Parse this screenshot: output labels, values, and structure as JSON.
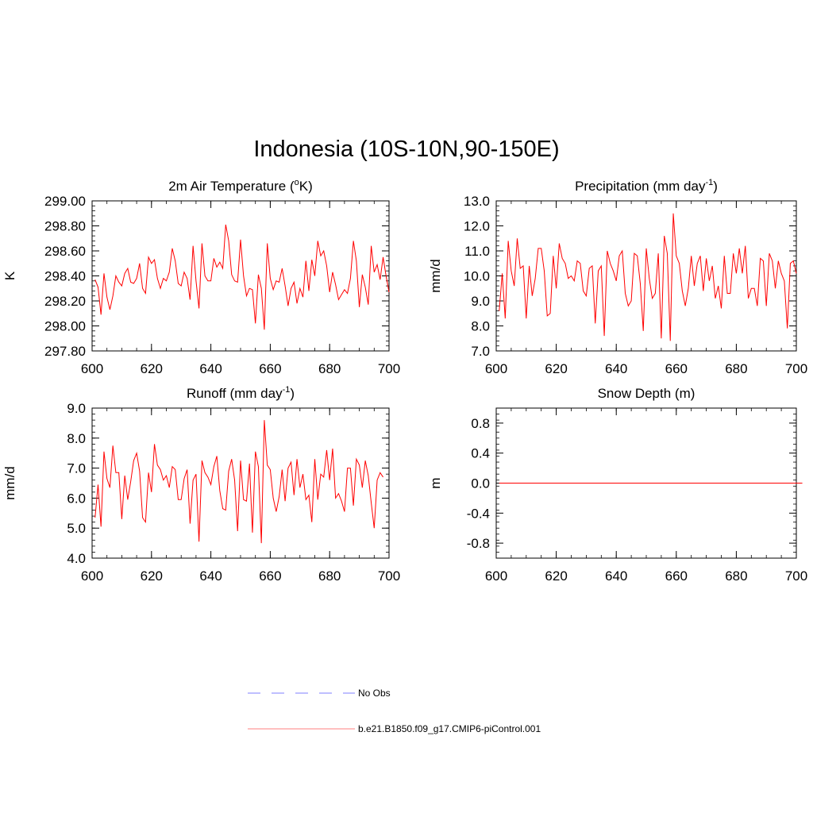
{
  "page": {
    "title": "Indonesia (10S-10N,90-150E)"
  },
  "colors": {
    "model": "#ff0000",
    "obs": "#9999ff",
    "axis": "#000000"
  },
  "legend": {
    "obs_label": "No Obs",
    "model_label": "b.e21.B1850.f09_g17.CMIP6-piControl.001"
  },
  "chart_data": [
    {
      "type": "line",
      "title": "2m Air Temperature (",
      "title_sup": "o",
      "title_end": "K)",
      "ylabel": "K",
      "xlim": [
        600,
        700
      ],
      "ylim": [
        297.8,
        299.0
      ],
      "x_ticks": [
        "600",
        "620",
        "640",
        "660",
        "680",
        "700"
      ],
      "y_ticks": [
        "297.80",
        "298.00",
        "298.20",
        "298.40",
        "298.60",
        "298.80",
        "299.00"
      ],
      "x_start": 601,
      "series": [
        {
          "values": [
            298.37,
            298.31,
            298.09,
            298.42,
            298.23,
            298.13,
            298.24,
            298.4,
            298.35,
            298.32,
            298.42,
            298.46,
            298.35,
            298.34,
            298.38,
            298.5,
            298.3,
            298.26,
            298.55,
            298.5,
            298.53,
            298.38,
            298.3,
            298.38,
            298.36,
            298.43,
            298.62,
            298.52,
            298.34,
            298.32,
            298.43,
            298.38,
            298.21,
            298.64,
            298.36,
            298.14,
            298.66,
            298.4,
            298.36,
            298.36,
            298.54,
            298.47,
            298.51,
            298.46,
            298.81,
            298.68,
            298.41,
            298.36,
            298.35,
            298.69,
            298.4,
            298.24,
            298.3,
            298.29,
            298.02,
            298.41,
            298.3,
            297.97,
            298.66,
            298.38,
            298.29,
            298.36,
            298.35,
            298.46,
            298.32,
            298.16,
            298.3,
            298.35,
            298.18,
            298.3,
            298.23,
            298.52,
            298.28,
            298.53,
            298.4,
            298.68,
            298.56,
            298.6,
            298.48,
            298.27,
            298.43,
            298.33,
            298.21,
            298.25,
            298.29,
            298.26,
            298.38,
            298.68,
            298.52,
            298.15,
            298.41,
            298.31,
            298.17,
            298.64,
            298.43,
            298.49,
            298.37,
            298.55,
            298.4,
            298.27
          ]
        }
      ]
    },
    {
      "type": "line",
      "title": "Precipitation (mm day",
      "title_sup": "-1",
      "title_end": ")",
      "ylabel": "mm/d",
      "xlim": [
        600,
        700
      ],
      "ylim": [
        7.0,
        13.0
      ],
      "x_ticks": [
        "600",
        "620",
        "640",
        "660",
        "680",
        "700"
      ],
      "y_ticks": [
        "7.0",
        "8.0",
        "9.0",
        "10.0",
        "11.0",
        "12.0",
        "13.0"
      ],
      "x_start": 601,
      "series": [
        {
          "values": [
            8.6,
            10.1,
            8.3,
            11.4,
            10.2,
            9.6,
            11.5,
            10.3,
            10.4,
            8.3,
            10.4,
            9.2,
            9.9,
            11.1,
            11.1,
            10.2,
            8.4,
            8.5,
            10.8,
            9.5,
            11.3,
            10.7,
            10.5,
            9.9,
            10.0,
            9.8,
            10.6,
            10.5,
            9.4,
            9.2,
            10.3,
            10.4,
            8.1,
            10.2,
            10.4,
            7.6,
            11.0,
            10.5,
            10.2,
            9.8,
            10.8,
            11.0,
            9.3,
            8.8,
            9.0,
            10.9,
            10.8,
            9.7,
            7.8,
            11.1,
            9.9,
            9.1,
            9.3,
            10.9,
            7.5,
            11.6,
            10.9,
            7.4,
            12.5,
            10.8,
            10.5,
            9.4,
            8.8,
            9.5,
            10.8,
            9.6,
            10.5,
            10.8,
            9.4,
            10.7,
            9.8,
            10.4,
            9.1,
            9.6,
            8.7,
            10.8,
            9.3,
            9.3,
            10.9,
            10.1,
            11.1,
            10.1,
            11.2,
            9.1,
            9.5,
            9.5,
            8.8,
            10.7,
            10.6,
            8.8,
            10.9,
            10.6,
            9.5,
            10.6,
            10.1,
            9.8,
            7.9,
            10.5,
            10.6,
            10.1
          ]
        }
      ]
    },
    {
      "type": "line",
      "title": "Runoff (mm day",
      "title_sup": "-1",
      "title_end": ")",
      "ylabel": "mm/d",
      "xlim": [
        600,
        700
      ],
      "ylim": [
        4.0,
        9.0
      ],
      "x_ticks": [
        "600",
        "620",
        "640",
        "660",
        "680",
        "700"
      ],
      "y_ticks": [
        "4.0",
        "5.0",
        "6.0",
        "7.0",
        "8.0",
        "9.0"
      ],
      "x_start": 601,
      "series": [
        {
          "values": [
            5.35,
            6.45,
            5.05,
            7.55,
            6.65,
            6.35,
            7.75,
            6.85,
            6.85,
            5.3,
            6.75,
            5.95,
            6.55,
            7.25,
            7.5,
            6.9,
            5.35,
            5.2,
            6.85,
            6.2,
            7.8,
            7.1,
            6.95,
            6.6,
            6.75,
            6.35,
            7.05,
            6.95,
            5.95,
            5.95,
            6.65,
            6.95,
            5.15,
            6.6,
            6.8,
            4.55,
            7.25,
            6.85,
            6.7,
            6.45,
            7.05,
            7.4,
            6.25,
            5.65,
            5.6,
            6.9,
            7.3,
            6.6,
            4.9,
            7.25,
            5.95,
            5.9,
            7.15,
            4.85,
            7.55,
            7.05,
            4.5,
            8.6,
            7.1,
            6.95,
            6.0,
            5.55,
            6.05,
            6.95,
            5.9,
            7.0,
            7.2,
            6.1,
            7.3,
            6.35,
            6.8,
            5.95,
            6.1,
            5.2,
            7.3,
            5.95,
            6.8,
            6.7,
            7.6,
            6.6,
            7.65,
            6.0,
            6.15,
            5.9,
            5.55,
            7.0,
            7.0,
            5.75,
            7.3,
            7.1,
            6.35,
            7.25,
            6.75,
            5.85,
            5.0,
            6.6,
            6.85,
            6.7
          ]
        }
      ]
    },
    {
      "type": "line",
      "title": "Snow Depth (m)",
      "title_sup": "",
      "title_end": "",
      "ylabel": "m",
      "xlim": [
        600,
        700
      ],
      "ylim": [
        -1.0,
        1.0
      ],
      "x_ticks": [
        "600",
        "620",
        "640",
        "660",
        "680",
        "700"
      ],
      "y_ticks": [
        "-0.8",
        "-0.4",
        "0.0",
        "0.4",
        "0.8"
      ],
      "y_tick_values": [
        -0.8,
        -0.4,
        0.0,
        0.4,
        0.8
      ],
      "x_start": 601,
      "series": [
        {
          "values": [
            0,
            0,
            0,
            0,
            0,
            0,
            0,
            0,
            0,
            0,
            0,
            0,
            0,
            0,
            0,
            0,
            0,
            0,
            0,
            0,
            0,
            0,
            0,
            0,
            0,
            0,
            0,
            0,
            0,
            0,
            0,
            0,
            0,
            0,
            0,
            0,
            0,
            0,
            0,
            0,
            0,
            0,
            0,
            0,
            0,
            0,
            0,
            0,
            0,
            0,
            0,
            0,
            0,
            0,
            0,
            0,
            0,
            0,
            0,
            0,
            0,
            0,
            0,
            0,
            0,
            0,
            0,
            0,
            0,
            0,
            0,
            0,
            0,
            0,
            0,
            0,
            0,
            0,
            0,
            0,
            0,
            0,
            0,
            0,
            0,
            0,
            0,
            0,
            0,
            0,
            0,
            0,
            0,
            0,
            0,
            0,
            0,
            0,
            0,
            0,
            0,
            0
          ]
        }
      ]
    }
  ]
}
